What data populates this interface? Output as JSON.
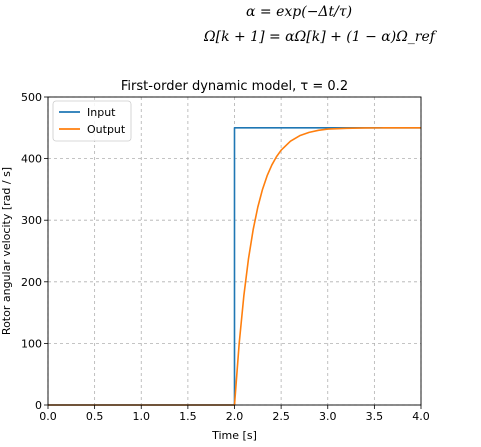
{
  "equations": {
    "line1": "α = exp(−Δt/τ)",
    "line2": "Ω[k + 1] = αΩ[k] + (1 − α)Ω_ref"
  },
  "chart_data": {
    "type": "line",
    "title": "First-order dynamic model, τ = 0.2",
    "xlabel": "Time [s]",
    "ylabel": "Rotor angular velocity [rad / s]",
    "xlim": [
      0.0,
      4.0
    ],
    "ylim": [
      0,
      500
    ],
    "xticks": [
      "0.0",
      "0.5",
      "1.0",
      "1.5",
      "2.0",
      "2.5",
      "3.0",
      "3.5",
      "4.0"
    ],
    "yticks": [
      "0",
      "100",
      "200",
      "300",
      "400",
      "500"
    ],
    "grid": true,
    "legend_position": "top-left",
    "series": [
      {
        "name": "Input",
        "color": "#1f77b4",
        "x": [
          0.0,
          2.0,
          2.0,
          4.0
        ],
        "y": [
          0,
          0,
          450,
          450
        ]
      },
      {
        "name": "Output",
        "color": "#ff7f0e",
        "x": [
          0.0,
          2.0,
          2.05,
          2.1,
          2.15,
          2.2,
          2.25,
          2.3,
          2.35,
          2.4,
          2.45,
          2.5,
          2.6,
          2.7,
          2.8,
          2.9,
          3.0,
          3.2,
          3.4,
          3.6,
          3.8,
          4.0
        ],
        "y": [
          0,
          0,
          99.5,
          177.1,
          237.5,
          284.6,
          321.2,
          349.9,
          372.2,
          389.5,
          403.0,
          413.6,
          428.3,
          437.2,
          442.6,
          445.9,
          448.0,
          449.2,
          449.7,
          449.9,
          450.0,
          450.0
        ]
      }
    ]
  }
}
